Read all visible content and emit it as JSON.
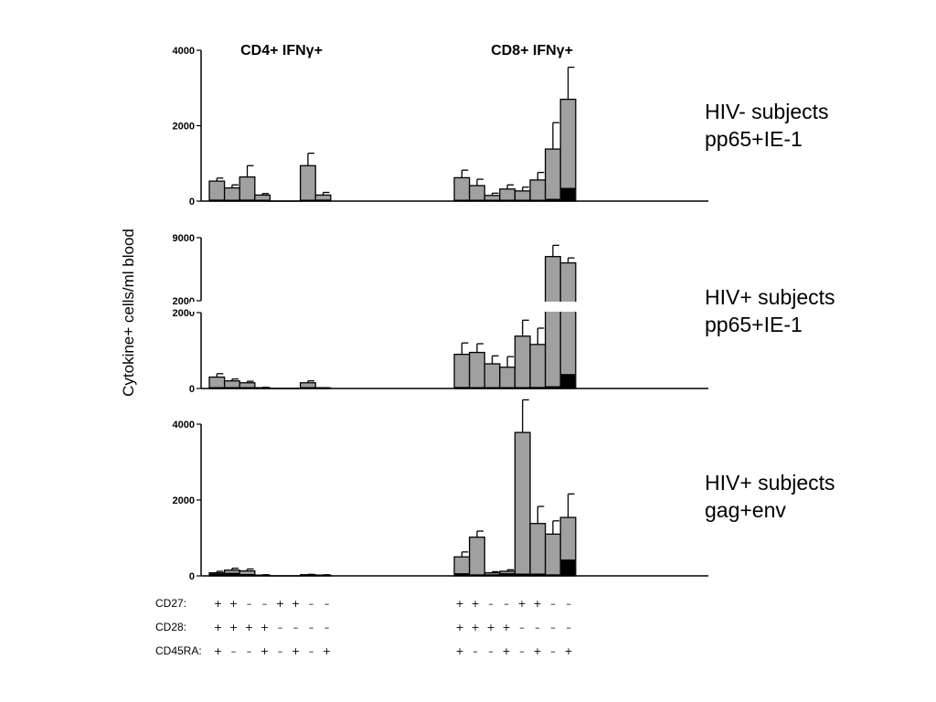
{
  "chart_data": {
    "type": "bar",
    "ylabel": "Cytokine+ cells/ml blood",
    "group_titles": [
      "CD4+ IFNγ+",
      "CD8+ IFNγ+"
    ],
    "markers": [
      {
        "name": "CD27:",
        "cd4": [
          "+",
          "+",
          "–",
          "–",
          "+",
          "+",
          "–",
          "–"
        ],
        "cd8": [
          "+",
          "+",
          "–",
          "–",
          "+",
          "+",
          "–",
          "–"
        ]
      },
      {
        "name": "CD28:",
        "cd4": [
          "+",
          "+",
          "+",
          "+",
          "–",
          "–",
          "–",
          "–"
        ],
        "cd8": [
          "+",
          "+",
          "+",
          "+",
          "–",
          "–",
          "–",
          "–"
        ]
      },
      {
        "name": "CD45RA:",
        "cd4": [
          "+",
          "–",
          "–",
          "+",
          "–",
          "+",
          "–",
          "+"
        ],
        "cd8": [
          "+",
          "–",
          "–",
          "+",
          "–",
          "+",
          "–",
          "+"
        ]
      }
    ],
    "panels": [
      {
        "label_lines": [
          "HIV- subjects",
          "pp65+IE-1"
        ],
        "yticks": [
          "0",
          "2000",
          "4000"
        ],
        "ylim": [
          0,
          4000
        ],
        "cd4": {
          "values": [
            530,
            350,
            640,
            160,
            0,
            0,
            940,
            160
          ],
          "errors": [
            80,
            80,
            300,
            40,
            0,
            0,
            330,
            70
          ],
          "dark": [
            40,
            30,
            40,
            10,
            0,
            0,
            20,
            40
          ]
        },
        "cd8": {
          "values": [
            620,
            410,
            150,
            320,
            270,
            560,
            1380,
            2700
          ],
          "errors": [
            200,
            170,
            60,
            110,
            100,
            200,
            700,
            850
          ],
          "dark": [
            30,
            20,
            10,
            20,
            20,
            30,
            60,
            350
          ]
        }
      },
      {
        "label_lines": [
          "HIV+ subjects",
          "pp65+IE-1"
        ],
        "yticks_lower": [
          "0",
          "2000"
        ],
        "yticks_upper": [
          "2000",
          "9000"
        ],
        "ylim_lower": [
          0,
          2000
        ],
        "ylim_upper": [
          2000,
          9000
        ],
        "cd4": {
          "values": [
            300,
            200,
            150,
            20,
            0,
            0,
            150,
            10
          ],
          "errors": [
            90,
            50,
            40,
            10,
            0,
            0,
            50,
            10
          ],
          "dark": [
            20,
            20,
            10,
            5,
            0,
            0,
            10,
            5
          ]
        },
        "cd8": {
          "values": [
            900,
            950,
            650,
            560,
            1380,
            1160,
            6900,
            6200
          ],
          "errors": [
            300,
            230,
            210,
            280,
            420,
            430,
            1250,
            550
          ],
          "dark": [
            40,
            20,
            20,
            10,
            30,
            40,
            60,
            380
          ]
        }
      },
      {
        "label_lines": [
          "HIV+ subjects",
          "gag+env"
        ],
        "yticks": [
          "0",
          "2000",
          "4000"
        ],
        "ylim": [
          0,
          4000
        ],
        "cd4": {
          "values": [
            80,
            150,
            130,
            20,
            0,
            0,
            30,
            20
          ],
          "errors": [
            40,
            50,
            50,
            10,
            0,
            0,
            10,
            10
          ],
          "dark": [
            60,
            80,
            50,
            10,
            0,
            0,
            20,
            10
          ]
        },
        "cd8": {
          "values": [
            500,
            1020,
            80,
            120,
            3780,
            1380,
            1100,
            1540
          ],
          "errors": [
            130,
            160,
            30,
            40,
            860,
            450,
            350,
            620
          ],
          "dark": [
            70,
            40,
            40,
            70,
            60,
            60,
            40,
            430
          ]
        }
      }
    ]
  }
}
